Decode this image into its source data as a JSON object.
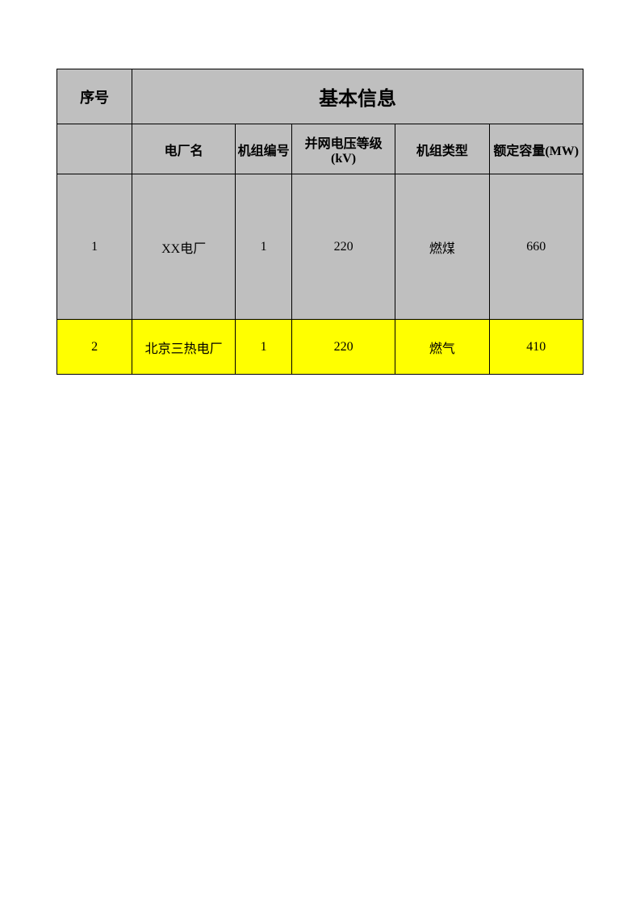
{
  "table": {
    "header": {
      "seq_label": "序号",
      "main_title": "基本信息",
      "columns": {
        "plant_name": "电厂名",
        "unit_number": "机组编号",
        "voltage_level": "并网电压等级(kV)",
        "unit_type": "机组类型",
        "rated_capacity": "额定容量(MW)"
      }
    },
    "rows": [
      {
        "seq": "1",
        "plant_name": "XX电厂",
        "unit_number": "1",
        "voltage_level": "220",
        "unit_type": "燃煤",
        "rated_capacity": "660"
      },
      {
        "seq": "2",
        "plant_name": "北京三热电厂",
        "unit_number": "1",
        "voltage_level": "220",
        "unit_type": "燃气",
        "rated_capacity": "410"
      }
    ],
    "styling": {
      "header_bg_color": "#bfbfbf",
      "row1_bg_color": "#bfbfbf",
      "row2_bg_color": "#ffff00",
      "border_color": "#000000",
      "header_fontsize": 18,
      "main_title_fontsize": 24,
      "subheader_fontsize": 16,
      "cell_fontsize": 16,
      "row1_height": 180,
      "row2_height": 68,
      "header_row_height": 68,
      "subheader_row_height": 62
    }
  }
}
